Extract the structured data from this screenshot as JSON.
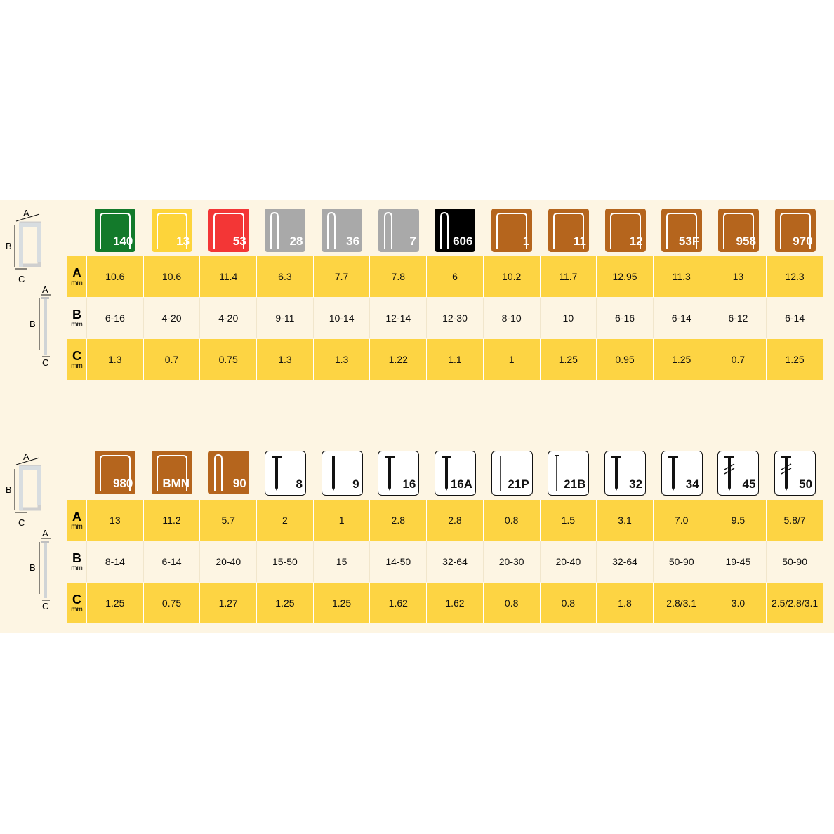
{
  "dimension_labels": {
    "a": "A",
    "b": "B",
    "c": "C",
    "unit": "mm"
  },
  "tables": [
    {
      "items": [
        {
          "code": "140",
          "color": "#137a2b",
          "shape": "staple-wide"
        },
        {
          "code": "13",
          "color": "#fdd43a",
          "shape": "staple-wide"
        },
        {
          "code": "53",
          "color": "#f33636",
          "shape": "staple-wide"
        },
        {
          "code": "28",
          "color": "#a9a9a9",
          "shape": "staple-narrow"
        },
        {
          "code": "36",
          "color": "#a9a9a9",
          "shape": "staple-narrow"
        },
        {
          "code": "7",
          "color": "#a9a9a9",
          "shape": "staple-narrow"
        },
        {
          "code": "606",
          "color": "#000000",
          "shape": "staple-narrow"
        },
        {
          "code": "1",
          "color": "#b5651d",
          "shape": "staple-wide"
        },
        {
          "code": "11",
          "color": "#b5651d",
          "shape": "staple-wide"
        },
        {
          "code": "12",
          "color": "#b5651d",
          "shape": "staple-wide"
        },
        {
          "code": "53F",
          "color": "#b5651d",
          "shape": "staple-wide"
        },
        {
          "code": "958",
          "color": "#b5651d",
          "shape": "staple-wide"
        },
        {
          "code": "970",
          "color": "#b5651d",
          "shape": "staple-wide"
        }
      ],
      "A": [
        "10.6",
        "10.6",
        "11.4",
        "6.3",
        "7.7",
        "7.8",
        "6",
        "10.2",
        "11.7",
        "12.95",
        "11.3",
        "13",
        "12.3"
      ],
      "B": [
        "6-16",
        "4-20",
        "4-20",
        "9-11",
        "10-14",
        "12-14",
        "12-30",
        "8-10",
        "10",
        "6-16",
        "6-14",
        "6-12",
        "6-14"
      ],
      "C": [
        "1.3",
        "0.7",
        "0.75",
        "1.3",
        "1.3",
        "1.22",
        "1.1",
        "1",
        "1.25",
        "0.95",
        "1.25",
        "0.7",
        "1.25"
      ]
    },
    {
      "items": [
        {
          "code": "980",
          "color": "#b5651d",
          "shape": "staple-wide"
        },
        {
          "code": "BMN",
          "color": "#b5651d",
          "shape": "staple-wide"
        },
        {
          "code": "90",
          "color": "#b5651d",
          "shape": "staple-narrow"
        },
        {
          "code": "8",
          "color": "#ffffff",
          "shape": "nail-t"
        },
        {
          "code": "9",
          "color": "#ffffff",
          "shape": "nail-plain"
        },
        {
          "code": "16",
          "color": "#ffffff",
          "shape": "nail-t"
        },
        {
          "code": "16A",
          "color": "#ffffff",
          "shape": "nail-t"
        },
        {
          "code": "21P",
          "color": "#ffffff",
          "shape": "pin"
        },
        {
          "code": "21B",
          "color": "#ffffff",
          "shape": "brad"
        },
        {
          "code": "32",
          "color": "#ffffff",
          "shape": "nail-t"
        },
        {
          "code": "34",
          "color": "#ffffff",
          "shape": "nail-t"
        },
        {
          "code": "45",
          "color": "#ffffff",
          "shape": "nail-ring"
        },
        {
          "code": "50",
          "color": "#ffffff",
          "shape": "nail-ring"
        }
      ],
      "A": [
        "13",
        "11.2",
        "5.7",
        "2",
        "1",
        "2.8",
        "2.8",
        "0.8",
        "1.5",
        "3.1",
        "7.0",
        "9.5",
        "5.8/7"
      ],
      "B": [
        "8-14",
        "6-14",
        "20-40",
        "15-50",
        "15",
        "14-50",
        "32-64",
        "20-30",
        "20-40",
        "32-64",
        "50-90",
        "19-45",
        "50-90"
      ],
      "C": [
        "1.25",
        "0.75",
        "1.27",
        "1.25",
        "1.25",
        "1.62",
        "1.62",
        "0.8",
        "0.8",
        "1.8",
        "2.8/3.1",
        "3.0",
        "2.5/2.8/3.1"
      ]
    }
  ]
}
